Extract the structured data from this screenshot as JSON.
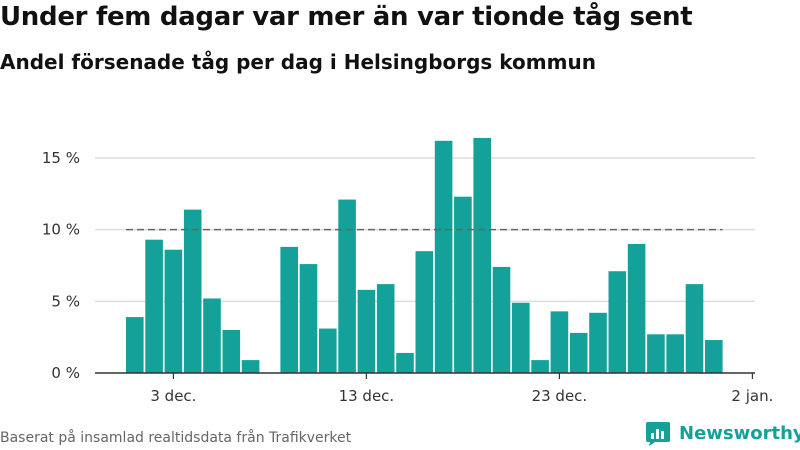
{
  "title": "Under fem dagar var mer än var tionde tåg sent",
  "subtitle": "Andel försenade tåg per dag i Helsingborgs kommun",
  "source": "Baserat på insamlad realtidsdata från Trafikverket",
  "brand": {
    "name": "Newsworthy",
    "icon": "newsworthy-logo-icon",
    "color": "#14a19a"
  },
  "chart_data": {
    "type": "bar",
    "title": "Under fem dagar var mer än var tionde tåg sent",
    "subtitle": "Andel försenade tåg per dag i Helsingborgs kommun",
    "xlabel": "",
    "ylabel": "",
    "bar_color": "#14a19a",
    "grid": true,
    "ylim": [
      0,
      18
    ],
    "y_ticks": [
      {
        "value": 0,
        "label": "0 %"
      },
      {
        "value": 5,
        "label": "5 %"
      },
      {
        "value": 10,
        "label": "10 %"
      },
      {
        "value": 15,
        "label": "15 %"
      }
    ],
    "x_ticks": [
      {
        "date": "2019-12-03",
        "label": "3 dec."
      },
      {
        "date": "2019-12-13",
        "label": "13 dec."
      },
      {
        "date": "2019-12-23",
        "label": "23 dec."
      },
      {
        "date": "2020-01-02",
        "label": "2 jan."
      }
    ],
    "reference_line": {
      "value": 10,
      "style": "dashed",
      "color": "#666666"
    },
    "x": [
      "2019-12-01",
      "2019-12-02",
      "2019-12-03",
      "2019-12-04",
      "2019-12-05",
      "2019-12-06",
      "2019-12-07",
      "2019-12-08",
      "2019-12-09",
      "2019-12-10",
      "2019-12-11",
      "2019-12-12",
      "2019-12-13",
      "2019-12-14",
      "2019-12-15",
      "2019-12-16",
      "2019-12-17",
      "2019-12-18",
      "2019-12-19",
      "2019-12-20",
      "2019-12-21",
      "2019-12-22",
      "2019-12-23",
      "2019-12-24",
      "2019-12-25",
      "2019-12-26",
      "2019-12-27",
      "2019-12-28",
      "2019-12-29",
      "2019-12-30",
      "2019-12-31"
    ],
    "values": [
      3.9,
      9.3,
      8.6,
      11.4,
      5.2,
      3.0,
      0.9,
      null,
      8.8,
      7.6,
      3.1,
      12.1,
      5.8,
      6.2,
      1.4,
      8.5,
      16.2,
      12.3,
      16.4,
      7.4,
      4.9,
      0.9,
      4.3,
      2.8,
      4.2,
      7.1,
      9.0,
      2.7,
      2.7,
      6.2,
      2.3
    ]
  }
}
